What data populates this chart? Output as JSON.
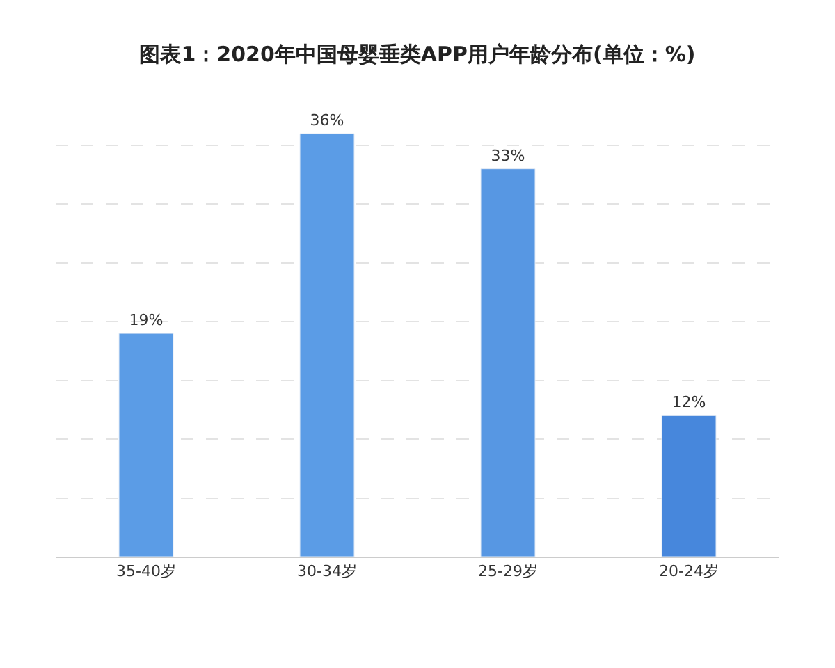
{
  "chart_data": {
    "type": "bar",
    "title": "图表1：2020年中国母婴垂类APP用户年龄分布(单位：%)",
    "categories": [
      "35-40岁",
      "30-34岁",
      "25-29岁",
      "20-24岁"
    ],
    "values": [
      19,
      36,
      33,
      12
    ],
    "value_labels": [
      "19%",
      "36%",
      "33%",
      "12%"
    ],
    "colors": [
      "#5b9ce6",
      "#5b9ce6",
      "#5797e3",
      "#4787dc"
    ],
    "grid": "y",
    "tick_labels": "x"
  }
}
